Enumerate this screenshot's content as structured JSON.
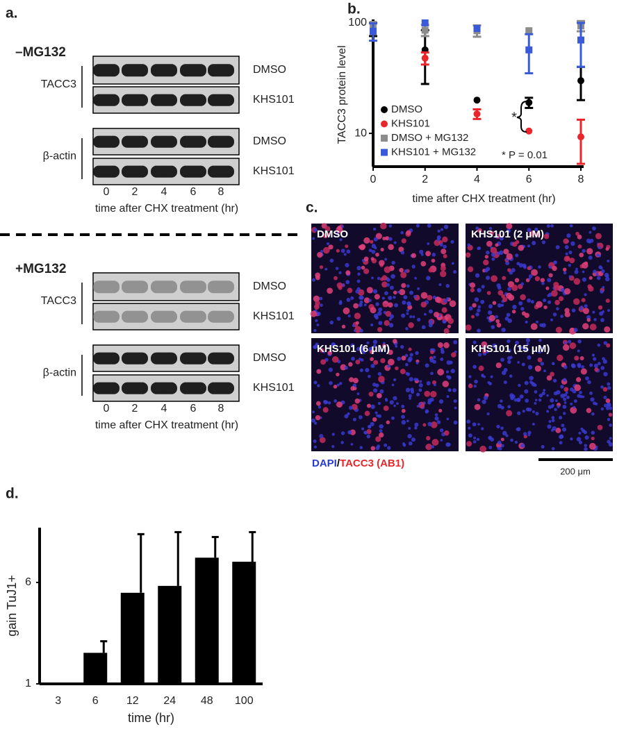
{
  "panels": {
    "a": "a.",
    "b": "b.",
    "c": "c.",
    "d": "d."
  },
  "blots": [
    {
      "condition": "–MG132",
      "protein_labels": [
        "TACC3",
        "β-actin"
      ],
      "row_labels": [
        "DMSO",
        "KHS101",
        "DMSO",
        "KHS101"
      ],
      "lanes": [
        "0",
        "2",
        "4",
        "6",
        "8"
      ],
      "xlabel": "time after CHX treatment (hr)"
    },
    {
      "condition": "+MG132",
      "protein_labels": [
        "TACC3",
        "β-actin"
      ],
      "row_labels": [
        "DMSO",
        "KHS101",
        "DMSO",
        "KHS101"
      ],
      "lanes": [
        "0",
        "2",
        "4",
        "6",
        "8"
      ],
      "xlabel": "time after CHX treatment (hr)"
    }
  ],
  "micrographs": {
    "tiles": [
      "DMSO",
      "KHS101 (2 μM)",
      "KHS101 (6 μM)",
      "KHS101 (15 μM)"
    ],
    "stain_blue": "DAPI",
    "separator": "/",
    "stain_red": "TACC3 (AB1)",
    "scale_bar": "200 μm"
  },
  "chart_data": [
    {
      "type": "scatter",
      "ylabel": "TACC3 protein level",
      "xlabel": "time after CHX treatment (hr)",
      "x": [
        0,
        2,
        4,
        6,
        8
      ],
      "xlim": [
        0,
        8
      ],
      "xticks": [
        0,
        2,
        4,
        6,
        8
      ],
      "yscale": "log",
      "ylim": [
        5,
        100
      ],
      "yticks": [
        10,
        100
      ],
      "legend": "lower left",
      "series": [
        {
          "name": "DMSO",
          "color": "#000000",
          "marker": "circle",
          "values": [
            88,
            57,
            20,
            19,
            30
          ],
          "errors": [
            12,
            29,
            null,
            2,
            10
          ]
        },
        {
          "name": "KHS101",
          "color": "#e8262b",
          "marker": "circle",
          "values": [
            95,
            48,
            15,
            10.5,
            9.3
          ],
          "errors": [
            null,
            6,
            1.5,
            null,
            4
          ]
        },
        {
          "name": "DMSO + MG132",
          "color": "#8c8c8c",
          "marker": "square",
          "values": [
            97,
            86,
            85,
            85,
            94
          ],
          "errors": [
            null,
            10,
            10,
            null,
            10
          ]
        },
        {
          "name": "KHS101 + MG132",
          "color": "#3a5bd9",
          "marker": "square",
          "values": [
            84,
            100,
            89,
            57,
            70
          ],
          "errors": [
            15,
            null,
            null,
            22,
            30
          ]
        }
      ],
      "annotations": [
        "*",
        "* P = 0.01"
      ]
    },
    {
      "type": "bar",
      "ylabel": "gain TuJ1+",
      "xlabel": "time (hr)",
      "categories": [
        "3",
        "6",
        "12",
        "24",
        "48",
        "100"
      ],
      "values": [
        1,
        2.53,
        5.49,
        5.83,
        7.22,
        7.02
      ],
      "errors": [
        null,
        0.57,
        2.89,
        2.65,
        1.02,
        1.46
      ],
      "color": "#000000",
      "ylim": [
        1,
        8.7
      ],
      "yticks": [
        1,
        6
      ]
    }
  ]
}
